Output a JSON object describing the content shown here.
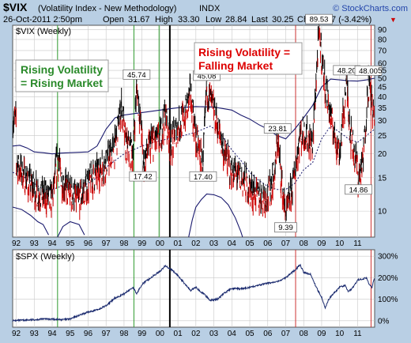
{
  "header": {
    "symbol": "$VIX",
    "name": "(Volatility Index - New Methodology)",
    "exchange": "INDX",
    "credit": "© StockCharts.com",
    "datetime": "26-Oct-2011 2:50pm",
    "open_label": "Open",
    "open": "31.67",
    "high_label": "High",
    "high": "33.30",
    "low_label": "Low",
    "low": "28.84",
    "last_label": "Last",
    "last": "30.25",
    "chg_label": "Chg",
    "chg": "-1.07 (-3.42%)",
    "chg_arrow": "▼"
  },
  "colors": {
    "background": "#b9cfe4",
    "panel": "#ffffff",
    "grid": "#c8c8c8",
    "vix_up": "#000000",
    "vix_down": "#cc0000",
    "bands": "#1a1a6e",
    "ma": "#1a1a6e",
    "spx": "#1a2a6e",
    "green_line": "#2e9a2e",
    "red_line": "#cc3333",
    "black_line": "#000000",
    "green_text": "#2a8a2a",
    "red_text": "#dd0000"
  },
  "annotations": {
    "green_box": [
      "Rising Volatility",
      "= Rising Market"
    ],
    "red_box": [
      "Rising Volatility =",
      "Falling Market"
    ]
  },
  "chart_data": [
    {
      "type": "candlestick",
      "panel_label": "$VIX (Weekly)",
      "scale": "log",
      "ylim": [
        7.3,
        95
      ],
      "y_ticks": [
        10,
        15,
        20,
        25,
        30,
        35,
        40,
        45,
        50,
        55,
        60,
        70,
        80,
        90
      ],
      "x_ticks": [
        "92",
        "93",
        "94",
        "95",
        "96",
        "97",
        "98",
        "99",
        "00",
        "01",
        "02",
        "03",
        "04",
        "05",
        "06",
        "07",
        "08",
        "09",
        "10",
        "11"
      ],
      "x_tick_positions": [
        1992.0,
        1993.0,
        1994.0,
        1995.0,
        1996.0,
        1997.0,
        1998.0,
        1999.0,
        2000.0,
        2001.0,
        2002.0,
        2003.0,
        2004.0,
        2005.0,
        2006.0,
        2007.0,
        2008.0,
        2009.0,
        2010.0,
        2011.0
      ],
      "xlim": [
        1991.8,
        2011.95
      ],
      "grid": true,
      "labels": [
        {
          "text": "45.74",
          "x": 1998.7,
          "value": 45.74,
          "pos": "above"
        },
        {
          "text": "17.42",
          "x": 1999.05,
          "value": 17.42,
          "pos": "below"
        },
        {
          "text": "45.08",
          "x": 2002.6,
          "value": 45.08,
          "pos": "above"
        },
        {
          "text": "17.40",
          "x": 2002.4,
          "value": 17.4,
          "pos": "below"
        },
        {
          "text": "23.81",
          "x": 2006.55,
          "value": 23.81,
          "pos": "above"
        },
        {
          "text": "9.39",
          "x": 2007.0,
          "value": 9.39,
          "pos": "below"
        },
        {
          "text": "89.53",
          "x": 2008.85,
          "value": 89.53,
          "pos": "above"
        },
        {
          "text": "48.20",
          "x": 2010.4,
          "value": 48.2,
          "pos": "above"
        },
        {
          "text": "48.00",
          "x": 2011.6,
          "value": 48.0,
          "pos": "above"
        },
        {
          "text": "14.86",
          "x": 2011.05,
          "value": 14.86,
          "pos": "below"
        }
      ],
      "vix_path": [
        [
          1992.0,
          18
        ],
        [
          1992.5,
          15
        ],
        [
          1993.0,
          13
        ],
        [
          1993.5,
          12
        ],
        [
          1994.0,
          11.5
        ],
        [
          1994.3,
          19
        ],
        [
          1994.6,
          14
        ],
        [
          1995.0,
          12.5
        ],
        [
          1995.5,
          11.5
        ],
        [
          1996.0,
          14
        ],
        [
          1996.5,
          16
        ],
        [
          1997.0,
          18
        ],
        [
          1997.5,
          22
        ],
        [
          1997.85,
          36
        ],
        [
          1998.1,
          22
        ],
        [
          1998.5,
          20
        ],
        [
          1998.7,
          45.74
        ],
        [
          1999.0,
          25
        ],
        [
          1999.05,
          17.42
        ],
        [
          1999.5,
          23
        ],
        [
          2000.0,
          24
        ],
        [
          2000.3,
          33
        ],
        [
          2000.6,
          22
        ],
        [
          2001.0,
          28
        ],
        [
          2001.3,
          30
        ],
        [
          2001.7,
          42
        ],
        [
          2002.0,
          24
        ],
        [
          2002.4,
          17.4
        ],
        [
          2002.6,
          45.08
        ],
        [
          2003.0,
          34
        ],
        [
          2003.3,
          26
        ],
        [
          2003.6,
          20
        ],
        [
          2004.0,
          16
        ],
        [
          2004.5,
          15
        ],
        [
          2005.0,
          13
        ],
        [
          2005.5,
          12
        ],
        [
          2006.0,
          12
        ],
        [
          2006.4,
          16
        ],
        [
          2006.55,
          23.81
        ],
        [
          2006.9,
          11
        ],
        [
          2007.0,
          9.39
        ],
        [
          2007.4,
          14
        ],
        [
          2007.8,
          25
        ],
        [
          2008.0,
          26
        ],
        [
          2008.5,
          22
        ],
        [
          2008.85,
          89.53
        ],
        [
          2009.2,
          45
        ],
        [
          2009.6,
          28
        ],
        [
          2010.0,
          20
        ],
        [
          2010.4,
          48.2
        ],
        [
          2010.6,
          26
        ],
        [
          2011.0,
          17
        ],
        [
          2011.05,
          14.86
        ],
        [
          2011.3,
          18
        ],
        [
          2011.6,
          48
        ],
        [
          2011.95,
          30.25
        ]
      ],
      "upper_band": [
        [
          1991.8,
          22
        ],
        [
          1992.2,
          22.2
        ],
        [
          1992.6,
          21.5
        ],
        [
          1993.0,
          20.5
        ],
        [
          1993.5,
          20.3
        ],
        [
          1994.0,
          20
        ],
        [
          1994.5,
          20.2
        ],
        [
          1995.0,
          20.3
        ],
        [
          1995.5,
          20.4
        ],
        [
          1996.0,
          20.5
        ],
        [
          1996.5,
          22
        ],
        [
          1997.0,
          27
        ],
        [
          1997.5,
          31
        ],
        [
          1998.0,
          32
        ],
        [
          1999.0,
          33
        ],
        [
          2000.0,
          34
        ],
        [
          2001.0,
          35
        ],
        [
          2002.0,
          35.5
        ],
        [
          2003.0,
          35.3
        ],
        [
          2004.0,
          34
        ],
        [
          2004.5,
          32
        ],
        [
          2005.0,
          30.5
        ],
        [
          2005.5,
          28.5
        ],
        [
          2006.0,
          27
        ],
        [
          2006.5,
          25
        ],
        [
          2007.0,
          24
        ],
        [
          2007.5,
          27
        ],
        [
          2008.0,
          31
        ],
        [
          2008.5,
          36
        ],
        [
          2009.0,
          45
        ],
        [
          2009.5,
          49.5
        ],
        [
          2010.0,
          49
        ],
        [
          2010.5,
          48.5
        ],
        [
          2011.0,
          48.3
        ],
        [
          2011.5,
          49
        ],
        [
          2011.95,
          50
        ]
      ],
      "lower_band": [
        [
          1991.8,
          10.5
        ],
        [
          1992.3,
          10.2
        ],
        [
          1992.8,
          9.5
        ],
        [
          1993.2,
          8.8
        ],
        [
          1993.5,
          8.5
        ],
        [
          1993.8,
          7.5
        ]
      ],
      "lower_band_2": [
        [
          1994.3,
          7.3
        ],
        [
          1994.6,
          8.3
        ],
        [
          1995.0,
          8.8
        ],
        [
          1995.5,
          8.5
        ],
        [
          1995.8,
          7.5
        ]
      ],
      "lower_band_3": [
        [
          2001.6,
          7.3
        ],
        [
          2001.8,
          9
        ],
        [
          2002.0,
          10.5
        ],
        [
          2002.3,
          11.5
        ],
        [
          2002.6,
          12.3
        ],
        [
          2003.0,
          12.2
        ],
        [
          2003.4,
          11.8
        ],
        [
          2003.8,
          10.8
        ],
        [
          2004.2,
          9.2
        ],
        [
          2004.5,
          7.8
        ],
        [
          2004.6,
          7.3
        ]
      ],
      "ma": [
        [
          1991.8,
          16
        ],
        [
          1992.5,
          15
        ],
        [
          1993.0,
          14
        ],
        [
          1993.5,
          13
        ],
        [
          1994.0,
          13
        ],
        [
          1994.5,
          13.5
        ],
        [
          1995.0,
          13.5
        ],
        [
          1995.5,
          13.3
        ],
        [
          1996.0,
          14
        ],
        [
          1996.5,
          15
        ],
        [
          1997.0,
          17
        ],
        [
          1998.0,
          20
        ],
        [
          1999.0,
          22
        ],
        [
          2000.0,
          23.5
        ],
        [
          2001.0,
          24.5
        ],
        [
          2002.0,
          26
        ],
        [
          2002.8,
          28
        ],
        [
          2003.3,
          26
        ],
        [
          2004.0,
          21
        ],
        [
          2004.5,
          18.5
        ],
        [
          2005.0,
          16
        ],
        [
          2005.5,
          14.5
        ],
        [
          2006.0,
          13.5
        ],
        [
          2006.5,
          13
        ],
        [
          2007.0,
          13
        ],
        [
          2007.5,
          14
        ],
        [
          2008.0,
          16.5
        ],
        [
          2008.5,
          18
        ],
        [
          2009.0,
          24
        ],
        [
          2009.5,
          28
        ],
        [
          2010.0,
          26
        ],
        [
          2010.5,
          24
        ],
        [
          2011.0,
          23
        ],
        [
          2011.5,
          25
        ],
        [
          2011.95,
          27
        ]
      ],
      "vertical_lines": [
        {
          "x": 1994.3,
          "color": "green"
        },
        {
          "x": 1998.55,
          "color": "green"
        },
        {
          "x": 1999.95,
          "color": "green"
        },
        {
          "x": 2000.55,
          "color": "black"
        },
        {
          "x": 2007.55,
          "color": "red"
        },
        {
          "x": 2011.75,
          "color": "red"
        }
      ]
    },
    {
      "type": "line",
      "panel_label": "$SPX (Weekly)",
      "y_ticks": [
        "300%",
        "200%",
        "100%",
        "0%"
      ],
      "y_tick_values": [
        300,
        200,
        100,
        0
      ],
      "ylim": [
        -30,
        330
      ],
      "xlim": [
        1991.8,
        2011.95
      ],
      "grid": true,
      "series": [
        {
          "values": [
            [
              1991.8,
              0
            ],
            [
              1992.5,
              3
            ],
            [
              1993.0,
              5
            ],
            [
              1993.5,
              8
            ],
            [
              1994.0,
              8
            ],
            [
              1994.5,
              5
            ],
            [
              1995.0,
              8
            ],
            [
              1995.5,
              25
            ],
            [
              1996.0,
              40
            ],
            [
              1996.5,
              50
            ],
            [
              1997.0,
              70
            ],
            [
              1997.5,
              105
            ],
            [
              1998.0,
              125
            ],
            [
              1998.5,
              155
            ],
            [
              1998.7,
              125
            ],
            [
              1999.0,
              170
            ],
            [
              1999.5,
              200
            ],
            [
              2000.0,
              230
            ],
            [
              2000.3,
              255
            ],
            [
              2000.6,
              240
            ],
            [
              2001.0,
              210
            ],
            [
              2001.3,
              180
            ],
            [
              2001.7,
              140
            ],
            [
              2002.0,
              155
            ],
            [
              2002.5,
              120
            ],
            [
              2002.8,
              95
            ],
            [
              2003.2,
              100
            ],
            [
              2003.6,
              130
            ],
            [
              2004.0,
              150
            ],
            [
              2004.5,
              148
            ],
            [
              2005.0,
              155
            ],
            [
              2005.5,
              165
            ],
            [
              2006.0,
              175
            ],
            [
              2006.5,
              180
            ],
            [
              2007.0,
              200
            ],
            [
              2007.5,
              235
            ],
            [
              2007.8,
              260
            ],
            [
              2008.0,
              225
            ],
            [
              2008.4,
              215
            ],
            [
              2008.7,
              155
            ],
            [
              2009.0,
              110
            ],
            [
              2009.2,
              60
            ],
            [
              2009.4,
              100
            ],
            [
              2009.7,
              130
            ],
            [
              2010.0,
              155
            ],
            [
              2010.3,
              165
            ],
            [
              2010.5,
              135
            ],
            [
              2010.8,
              160
            ],
            [
              2011.0,
              190
            ],
            [
              2011.3,
              195
            ],
            [
              2011.5,
              200
            ],
            [
              2011.65,
              170
            ],
            [
              2011.8,
              155
            ],
            [
              2011.95,
              205
            ]
          ]
        }
      ],
      "vertical_lines": [
        {
          "x": 1994.3,
          "color": "green"
        },
        {
          "x": 1998.55,
          "color": "green"
        },
        {
          "x": 2000.55,
          "color": "black"
        },
        {
          "x": 2007.55,
          "color": "red"
        },
        {
          "x": 2011.75,
          "color": "red"
        }
      ]
    }
  ]
}
